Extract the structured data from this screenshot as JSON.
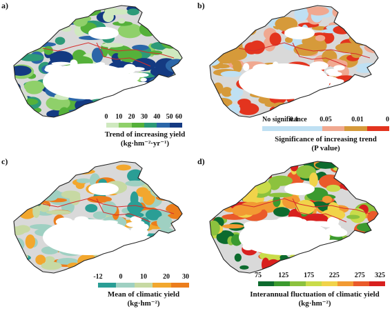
{
  "panels": [
    {
      "label": "a)",
      "legend": {
        "ticks": [
          "0",
          "10",
          "20",
          "30",
          "40",
          "50",
          "60"
        ],
        "colors": [
          "#cfe9bf",
          "#8fd06a",
          "#55b13a",
          "#2d9a78",
          "#2b66a8",
          "#143a82"
        ],
        "title_line1": "Trend of increasing yield",
        "title_line2": "(kg·hm⁻²·yr⁻¹)"
      }
    },
    {
      "label": "b)",
      "legend": {
        "ticks": [
          "No significance",
          "0.1",
          "0.05",
          "0.01",
          "0"
        ],
        "colors": [
          "#bfe0f3",
          "#f0a890",
          "#d69a3a",
          "#e3341e"
        ],
        "title_line1": "Significance of increasing trend",
        "title_line2": "(P value)"
      }
    },
    {
      "label": "c)",
      "legend": {
        "ticks": [
          "-12",
          "0",
          "10",
          "20",
          "30"
        ],
        "colors": [
          "#2a9e95",
          "#9fd0c2",
          "#c7d9a3",
          "#f2a72e",
          "#ec7d1c"
        ],
        "title_line1": "Mean of climatic yield",
        "title_line2": "(kg·hm⁻²)"
      }
    },
    {
      "label": "d)",
      "legend": {
        "ticks": [
          "75",
          "125",
          "175",
          "225",
          "275",
          "325"
        ],
        "colors": [
          "#0d6b2e",
          "#3b9a2f",
          "#8cc23e",
          "#c9dc4a",
          "#f1d34a",
          "#f29a33",
          "#ea5a2a",
          "#d8201e"
        ],
        "title_line1": "Interannual fluctuation of climatic yield",
        "title_line2": "(kg·hm⁻²)"
      }
    }
  ]
}
